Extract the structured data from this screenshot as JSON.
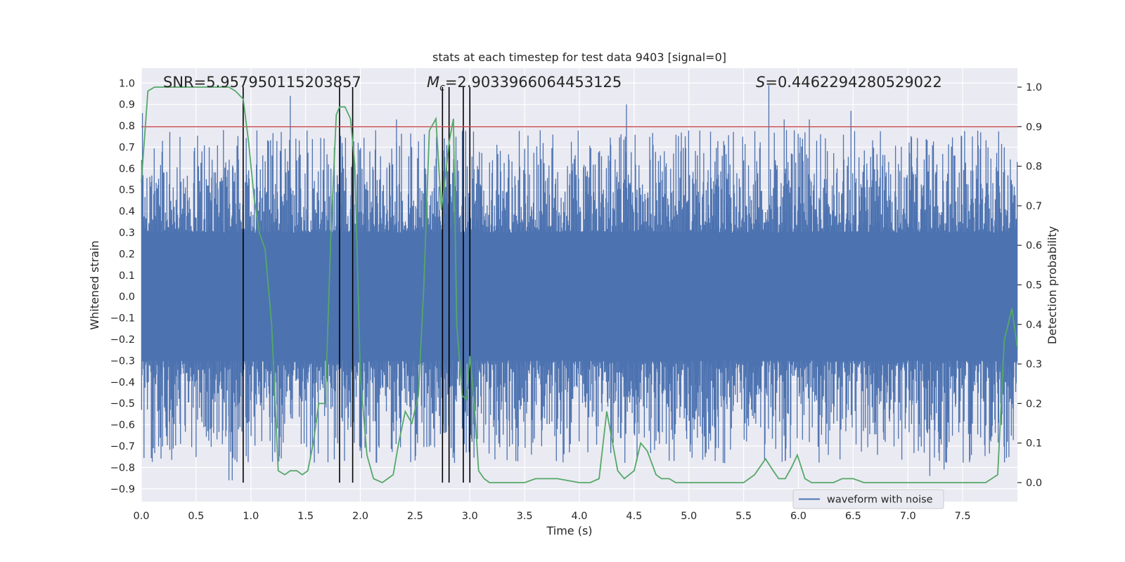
{
  "chart_data": {
    "type": "line",
    "title": "stats at each timestep for test data 9403 [signal=0]",
    "xlabel": "Time (s)",
    "ylabel_left": "Whitened strain",
    "ylabel_right": "Detection probability",
    "xlim": [
      0,
      8
    ],
    "ylim_left": [
      -0.96,
      1.07
    ],
    "ylim_right": [
      -0.048,
      1.048
    ],
    "xticks": [
      0.0,
      0.5,
      1.0,
      1.5,
      2.0,
      2.5,
      3.0,
      3.5,
      4.0,
      4.5,
      5.0,
      5.5,
      6.0,
      6.5,
      7.0,
      7.5
    ],
    "xtick_labels": [
      "0.0",
      "0.5",
      "1.0",
      "1.5",
      "2.0",
      "2.5",
      "3.0",
      "3.5",
      "4.0",
      "4.5",
      "5.0",
      "5.5",
      "6.0",
      "6.5",
      "7.0",
      "7.5"
    ],
    "yticks_left": [
      1.0,
      0.9,
      0.8,
      0.7,
      0.6,
      0.5,
      0.4,
      0.3,
      0.2,
      0.1,
      0.0,
      -0.1,
      -0.2,
      -0.3,
      -0.4,
      -0.5,
      -0.6,
      -0.7,
      -0.8,
      -0.9
    ],
    "ytick_labels_left": [
      "1.0",
      "0.9",
      "0.8",
      "0.7",
      "0.6",
      "0.5",
      "0.4",
      "0.3",
      "0.2",
      "0.1",
      "0.0",
      "−0.1",
      "−0.2",
      "−0.3",
      "−0.4",
      "−0.5",
      "−0.6",
      "−0.7",
      "−0.8",
      "−0.9"
    ],
    "yticks_right": [
      0.0,
      0.1,
      0.2,
      0.3,
      0.4,
      0.5,
      0.6,
      0.7,
      0.8,
      0.9,
      1.0
    ],
    "ytick_labels_right": [
      "0.0",
      "0.1",
      "0.2",
      "0.3",
      "0.4",
      "0.5",
      "0.6",
      "0.7",
      "0.8",
      "0.9",
      "1.0"
    ],
    "grid": true,
    "legend": {
      "placement": "lower-right",
      "entries": [
        "waveform with noise"
      ]
    },
    "annotations": {
      "snr_label": "SNR=5.957950115203857",
      "mc_label_symbol": "M",
      "mc_label_sub": "c",
      "mc_label_value": "=2.9033966064453125",
      "s_label_symbol": "S",
      "s_label_value": "=0.4462294280529022"
    },
    "threshold": {
      "value": 0.9,
      "axis": "right",
      "color": "#c44e52"
    },
    "vertical_markers": [
      0.93,
      1.81,
      1.93,
      2.75,
      2.81,
      2.94,
      3.0
    ],
    "series": [
      {
        "name": "waveform with noise",
        "axis": "left",
        "color": "#4c72b0",
        "kind": "noise",
        "core_range": [
          -0.3,
          0.3
        ],
        "tallest_peaks": [
          {
            "x": 0.01,
            "y": 0.86
          },
          {
            "x": 1.36,
            "y": 0.94
          },
          {
            "x": 4.43,
            "y": 0.9
          },
          {
            "x": 5.73,
            "y": 0.99
          },
          {
            "x": 0.75,
            "y": 0.78
          },
          {
            "x": 2.33,
            "y": 0.83
          },
          {
            "x": 6.48,
            "y": 0.87
          },
          {
            "x": 6.1,
            "y": 0.83
          },
          {
            "x": 5.87,
            "y": 0.83
          },
          {
            "x": 7.88,
            "y": 0.7
          },
          {
            "x": 0.83,
            "y": -0.86
          },
          {
            "x": 0.8,
            "y": -0.86
          },
          {
            "x": 7.2,
            "y": -0.84
          },
          {
            "x": 7.33,
            "y": -0.81
          },
          {
            "x": 3.79,
            "y": -0.77
          },
          {
            "x": 5.88,
            "y": -0.77
          },
          {
            "x": 5.24,
            "y": -0.77
          },
          {
            "x": 0.11,
            "y": -0.71
          }
        ]
      },
      {
        "name": "",
        "axis": "right",
        "color": "#55a868",
        "x": [
          0.0,
          0.06,
          0.12,
          0.18,
          0.25,
          0.35,
          0.5,
          0.6,
          0.7,
          0.8,
          0.86,
          0.93,
          0.98,
          1.03,
          1.08,
          1.13,
          1.19,
          1.25,
          1.31,
          1.36,
          1.42,
          1.47,
          1.52,
          1.57,
          1.62,
          1.68,
          1.73,
          1.78,
          1.81,
          1.86,
          1.91,
          1.95,
          2.0,
          2.06,
          2.12,
          2.2,
          2.25,
          2.3,
          2.35,
          2.41,
          2.47,
          2.53,
          2.58,
          2.63,
          2.69,
          2.74,
          2.78,
          2.81,
          2.85,
          2.88,
          2.93,
          2.97,
          3.0,
          3.04,
          3.08,
          3.13,
          3.18,
          3.23,
          3.27,
          3.32,
          3.37,
          3.42,
          3.5,
          3.6,
          3.8,
          4.0,
          4.1,
          4.18,
          4.25,
          4.35,
          4.41,
          4.5,
          4.56,
          4.62,
          4.7,
          4.75,
          4.82,
          4.88,
          4.95,
          5.0,
          5.1,
          5.2,
          5.3,
          5.4,
          5.5,
          5.6,
          5.7,
          5.77,
          5.82,
          5.88,
          5.94,
          5.99,
          6.06,
          6.12,
          6.2,
          6.26,
          6.32,
          6.4,
          6.5,
          6.6,
          6.7,
          6.77,
          6.84,
          7.0,
          7.3,
          7.6,
          7.71,
          7.82,
          7.88,
          7.95,
          8.0
        ],
        "y": [
          0.76,
          0.99,
          1.0,
          1.0,
          1.0,
          1.0,
          1.0,
          1.0,
          1.0,
          1.0,
          0.99,
          0.97,
          0.86,
          0.72,
          0.63,
          0.59,
          0.4,
          0.03,
          0.02,
          0.03,
          0.03,
          0.02,
          0.03,
          0.1,
          0.2,
          0.2,
          0.62,
          0.93,
          0.95,
          0.95,
          0.92,
          0.8,
          0.27,
          0.07,
          0.01,
          0.0,
          0.01,
          0.02,
          0.1,
          0.18,
          0.15,
          0.22,
          0.5,
          0.89,
          0.92,
          0.69,
          0.78,
          0.86,
          0.92,
          0.4,
          0.22,
          0.21,
          0.32,
          0.2,
          0.03,
          0.01,
          0.0,
          0.0,
          0.0,
          0.0,
          0.0,
          0.0,
          0.0,
          0.01,
          0.01,
          0.0,
          0.0,
          0.01,
          0.18,
          0.03,
          0.01,
          0.03,
          0.1,
          0.08,
          0.02,
          0.01,
          0.01,
          0.0,
          0.0,
          0.0,
          0.0,
          0.0,
          0.0,
          0.0,
          0.0,
          0.02,
          0.06,
          0.03,
          0.01,
          0.01,
          0.04,
          0.07,
          0.01,
          0.0,
          0.0,
          0.0,
          0.0,
          0.01,
          0.01,
          0.0,
          0.0,
          0.0,
          0.0,
          0.0,
          0.0,
          0.0,
          0.0,
          0.02,
          0.36,
          0.44,
          0.34
        ]
      }
    ]
  }
}
